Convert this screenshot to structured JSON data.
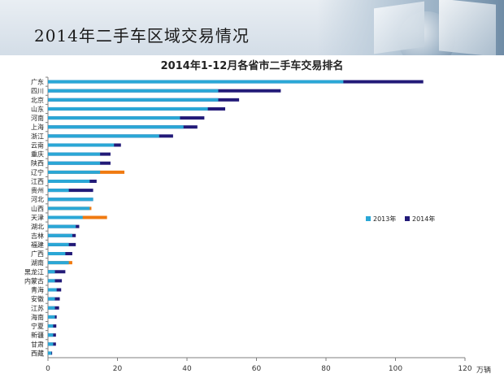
{
  "header": {
    "title": "2014年二手车区域交易情况"
  },
  "colors": {
    "series_2013": "#2aa7d6",
    "series_2014": "#221a78",
    "highlight_2014": "#f07a10",
    "axis": "#7f7f7f"
  },
  "chart_data": {
    "type": "bar",
    "orientation": "horizontal",
    "stacked": false,
    "title": "2014年1-12月各省市二手车交易排名",
    "xlabel": "",
    "ylabel": "",
    "unit_label": "万辆",
    "xlim": [
      0,
      120
    ],
    "x_ticks": [
      "0",
      "20",
      "40",
      "60",
      "80",
      "100",
      "120"
    ],
    "grid": false,
    "legend": "right-middle",
    "categories": [
      "广东",
      "四川",
      "北京",
      "山东",
      "河南",
      "上海",
      "浙江",
      "云南",
      "重庆",
      "陕西",
      "辽宁",
      "江西",
      "贵州",
      "河北",
      "山西",
      "天津",
      "湖北",
      "吉林",
      "福建",
      "广西",
      "湖南",
      "黑龙江",
      "内蒙古",
      "青海",
      "安徽",
      "江苏",
      "海南",
      "宁夏",
      "新疆",
      "甘肃",
      "西藏"
    ],
    "series": [
      {
        "name": "2013年",
        "values": [
          85,
          49,
          49,
          46,
          38,
          39,
          32,
          19,
          15,
          15,
          15,
          12,
          6,
          13,
          12,
          10,
          8,
          7,
          6,
          5,
          6,
          2,
          2,
          2.5,
          2,
          2,
          2,
          1.5,
          1.5,
          1.5,
          1
        ]
      },
      {
        "name": "2014年",
        "values": [
          108,
          67,
          55,
          51,
          45,
          43,
          36,
          21,
          18,
          18,
          22,
          14,
          13,
          13,
          12.5,
          17,
          9,
          8,
          8,
          7,
          7,
          5,
          4,
          3.8,
          3.4,
          3.2,
          2.5,
          2.4,
          2.3,
          2.3,
          1.2
        ]
      }
    ],
    "highlight_2014_categories": [
      "辽宁",
      "天津",
      "湖南",
      "山西"
    ]
  }
}
